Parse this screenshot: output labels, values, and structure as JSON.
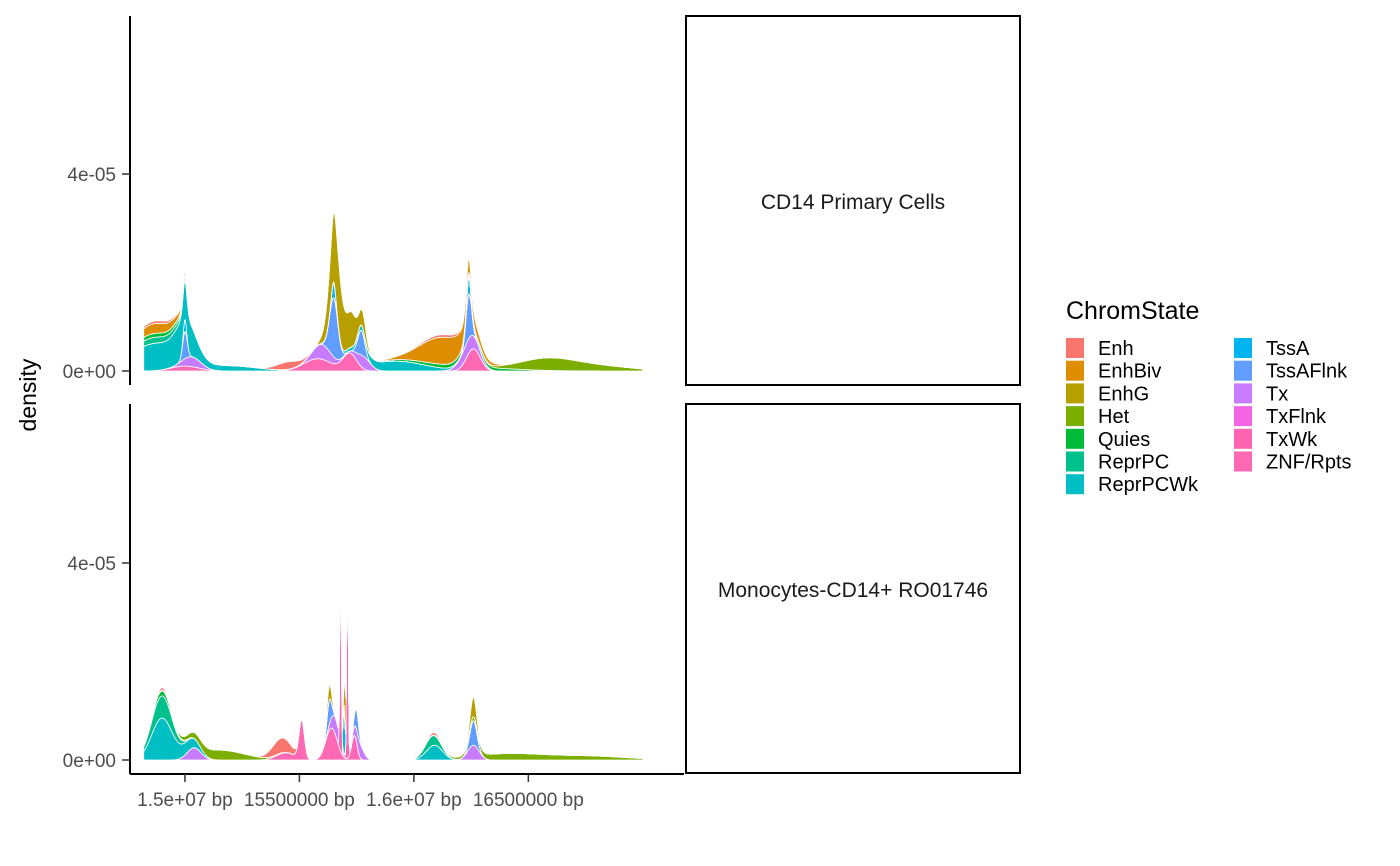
{
  "chart_data": {
    "type": "area",
    "stacked": true,
    "ylabel": "density",
    "x_ticks": [
      {
        "value": 15000000,
        "label": "1.5e+07 bp"
      },
      {
        "value": 15500000,
        "label": "15500000 bp"
      },
      {
        "value": 16000000,
        "label": "1.6e+07 bp"
      },
      {
        "value": 16500000,
        "label": "16500000 bp"
      }
    ],
    "y_ticks": [
      {
        "value": 0,
        "label": "0e+00"
      },
      {
        "value": 4e-05,
        "label": "4e-05"
      }
    ],
    "xlim": [
      14760000,
      17180000
    ],
    "ylim": [
      0,
      7.55e-05
    ],
    "legend": {
      "title": "ChromState",
      "position": "right",
      "entries": [
        {
          "name": "Enh",
          "color": "#F8766D"
        },
        {
          "name": "EnhBiv",
          "color": "#DE8C00"
        },
        {
          "name": "EnhG",
          "color": "#B79F00"
        },
        {
          "name": "Het",
          "color": "#7CAE00"
        },
        {
          "name": "Quies",
          "color": "#00BA38"
        },
        {
          "name": "ReprPC",
          "color": "#00C08B"
        },
        {
          "name": "ReprPCWk",
          "color": "#00BFC4"
        },
        {
          "name": "TssA",
          "color": "#00B4F0"
        },
        {
          "name": "TssAFlnk",
          "color": "#619CFF"
        },
        {
          "name": "Tx",
          "color": "#C77CFF"
        },
        {
          "name": "TxFlnk",
          "color": "#F564E3"
        },
        {
          "name": "TxWk",
          "color": "#FF64B0"
        },
        {
          "name": "ZNF/Rpts",
          "color": "#FF69B4"
        }
      ]
    },
    "panels": [
      {
        "label": "CD14 Primary Cells",
        "peaks": [
          {
            "state": "ReprPCWk",
            "center": 14870000,
            "width": 110000,
            "height": 5.5e-06
          },
          {
            "state": "ReprPCWk",
            "center": 15000000,
            "width": 40000,
            "height": 5e-06
          },
          {
            "state": "ReprPCWk",
            "center": 15200000,
            "width": 120000,
            "height": 1e-06
          },
          {
            "state": "ReprPCWk",
            "center": 15920000,
            "width": 130000,
            "height": 2e-06
          },
          {
            "state": "ReprPC",
            "center": 14870000,
            "width": 120000,
            "height": 1.2e-06
          },
          {
            "state": "Quies",
            "center": 14870000,
            "width": 130000,
            "height": 8e-07
          },
          {
            "state": "Quies",
            "center": 16200000,
            "width": 200000,
            "height": 8e-07
          },
          {
            "state": "Het",
            "center": 16580000,
            "width": 120000,
            "height": 2.2e-06
          },
          {
            "state": "Het",
            "center": 16800000,
            "width": 150000,
            "height": 1e-06
          },
          {
            "state": "ZNF/Rpts",
            "center": 15580000,
            "width": 60000,
            "height": 2.5e-06
          },
          {
            "state": "ZNF/Rpts",
            "center": 15720000,
            "width": 30000,
            "height": 3.5e-06
          },
          {
            "state": "ZNF/Rpts",
            "center": 16260000,
            "width": 30000,
            "height": 4.5e-06
          },
          {
            "state": "ZNF/Rpts",
            "center": 15000000,
            "width": 60000,
            "height": 1e-06
          },
          {
            "state": "Tx",
            "center": 15030000,
            "width": 40000,
            "height": 2e-06
          },
          {
            "state": "Tx",
            "center": 15600000,
            "width": 40000,
            "height": 3e-06
          },
          {
            "state": "Tx",
            "center": 15780000,
            "width": 30000,
            "height": 2.5e-06
          },
          {
            "state": "Tx",
            "center": 16240000,
            "width": 40000,
            "height": 3e-06
          },
          {
            "state": "TssAFlnk",
            "center": 15000000,
            "width": 10000,
            "height": 5.5e-06
          },
          {
            "state": "TssAFlnk",
            "center": 15650000,
            "width": 18000,
            "height": 1.2e-05
          },
          {
            "state": "TssAFlnk",
            "center": 15770000,
            "width": 15000,
            "height": 5e-06
          },
          {
            "state": "TssAFlnk",
            "center": 16240000,
            "width": 12000,
            "height": 9e-06
          },
          {
            "state": "TssA",
            "center": 15000000,
            "width": 6000,
            "height": 2.5e-06
          },
          {
            "state": "TssA",
            "center": 15650000,
            "width": 8000,
            "height": 3e-06
          },
          {
            "state": "TssA",
            "center": 16240000,
            "width": 7000,
            "height": 3.5e-06
          },
          {
            "state": "EnhG",
            "center": 15660000,
            "width": 30000,
            "height": 1.5e-05
          },
          {
            "state": "EnhG",
            "center": 15730000,
            "width": 20000,
            "height": 6e-06
          },
          {
            "state": "EnhG",
            "center": 15780000,
            "width": 15000,
            "height": 3e-06
          },
          {
            "state": "EnhBiv",
            "center": 14870000,
            "width": 90000,
            "height": 2e-06
          },
          {
            "state": "EnhBiv",
            "center": 16130000,
            "width": 100000,
            "height": 5.5e-06
          },
          {
            "state": "Enh",
            "center": 14870000,
            "width": 100000,
            "height": 5e-07
          },
          {
            "state": "Enh",
            "center": 15450000,
            "width": 50000,
            "height": 1.5e-06
          },
          {
            "state": "Enh",
            "center": 16130000,
            "width": 100000,
            "height": 5e-07
          }
        ]
      },
      {
        "label": "Monocytes-CD14+ RO01746",
        "peaks": [
          {
            "state": "ReprPCWk",
            "center": 14900000,
            "width": 45000,
            "height": 8.5e-06
          },
          {
            "state": "ReprPCWk",
            "center": 15020000,
            "width": 40000,
            "height": 2e-06
          },
          {
            "state": "ReprPCWk",
            "center": 16090000,
            "width": 35000,
            "height": 3e-06
          },
          {
            "state": "ReprPC",
            "center": 14900000,
            "width": 45000,
            "height": 4.5e-06
          },
          {
            "state": "ReprPC",
            "center": 16080000,
            "width": 35000,
            "height": 2e-06
          },
          {
            "state": "Quies",
            "center": 14900000,
            "width": 50000,
            "height": 1e-06
          },
          {
            "state": "Het",
            "center": 15150000,
            "width": 110000,
            "height": 2e-06
          },
          {
            "state": "Het",
            "center": 16400000,
            "width": 150000,
            "height": 1.2e-06
          },
          {
            "state": "Het",
            "center": 16750000,
            "width": 180000,
            "height": 8e-07
          },
          {
            "state": "ZNF/Rpts",
            "center": 15510000,
            "width": 12000,
            "height": 8e-06
          },
          {
            "state": "ZNF/Rpts",
            "center": 15640000,
            "width": 25000,
            "height": 6.5e-06
          },
          {
            "state": "ZNF/Rpts",
            "center": 15740000,
            "width": 12000,
            "height": 5e-06
          },
          {
            "state": "ZNF/Rpts",
            "center": 15440000,
            "width": 40000,
            "height": 1.5e-06
          },
          {
            "state": "TxWk",
            "center": 15680000,
            "width": 3000,
            "height": 4.5e-05
          },
          {
            "state": "TxWk",
            "center": 15710000,
            "width": 3000,
            "height": 5.2e-05
          },
          {
            "state": "Tx",
            "center": 15040000,
            "width": 30000,
            "height": 2.5e-06
          },
          {
            "state": "Tx",
            "center": 15660000,
            "width": 20000,
            "height": 3.5e-06
          },
          {
            "state": "Tx",
            "center": 15760000,
            "width": 20000,
            "height": 3e-06
          },
          {
            "state": "Tx",
            "center": 16260000,
            "width": 25000,
            "height": 3e-06
          },
          {
            "state": "TssAFlnk",
            "center": 15630000,
            "width": 10000,
            "height": 5e-06
          },
          {
            "state": "TssAFlnk",
            "center": 15750000,
            "width": 10000,
            "height": 4e-06
          },
          {
            "state": "TssAFlnk",
            "center": 16260000,
            "width": 15000,
            "height": 5e-06
          },
          {
            "state": "TssA",
            "center": 15695000,
            "width": 4000,
            "height": 1e-05
          },
          {
            "state": "EnhG",
            "center": 15630000,
            "width": 12000,
            "height": 3e-06
          },
          {
            "state": "EnhG",
            "center": 16260000,
            "width": 15000,
            "height": 4e-06
          },
          {
            "state": "EnhG",
            "center": 15700000,
            "width": 6000,
            "height": 8e-06
          },
          {
            "state": "Enh",
            "center": 15420000,
            "width": 40000,
            "height": 3e-06
          },
          {
            "state": "Enh",
            "center": 14900000,
            "width": 40000,
            "height": 5e-07
          },
          {
            "state": "Enh",
            "center": 16090000,
            "width": 30000,
            "height": 5e-07
          }
        ]
      }
    ]
  }
}
